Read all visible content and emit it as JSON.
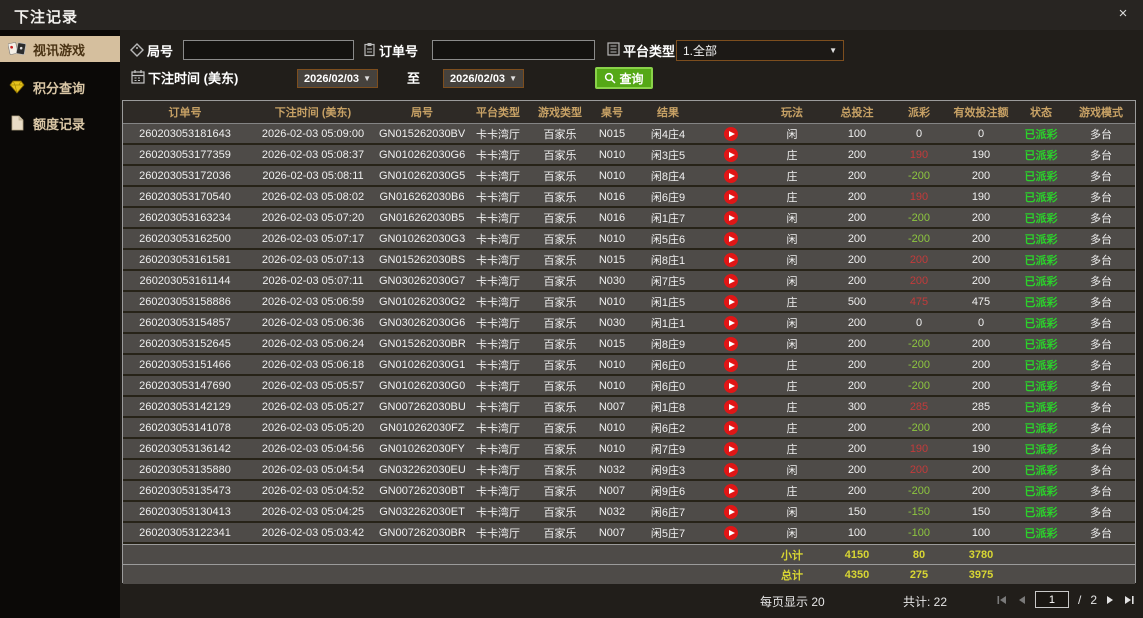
{
  "window": {
    "title": "下注记录",
    "close_label": "×"
  },
  "sidebar": {
    "items": [
      {
        "label": "视讯游戏"
      },
      {
        "label": "积分查询"
      },
      {
        "label": "额度记录"
      }
    ]
  },
  "filters": {
    "round_no_label": "局号",
    "round_no_value": "",
    "order_no_label": "订单号",
    "order_no_value": "",
    "platform_type_label": "平台类型",
    "platform_type_value": "1.全部",
    "bet_time_label": "下注时间 (美东)",
    "date_from": "2026/02/03",
    "to_label": "至",
    "date_to": "2026/02/03",
    "query_button_label": "查询"
  },
  "table": {
    "headers": [
      "订单号",
      "下注时间 (美东)",
      "局号",
      "平台类型",
      "游戏类型",
      "桌号",
      "结果",
      "",
      "玩法",
      "总投注",
      "派彩",
      "有效投注额",
      "状态",
      "游戏模式"
    ],
    "rows": [
      [
        "260203053181643",
        "2026-02-03 05:09:00",
        "GN015262030BV",
        "卡卡湾厅",
        "百家乐",
        "N015",
        "闲4庄4",
        "闲",
        "100",
        "0",
        "0",
        "已派彩",
        "多台"
      ],
      [
        "260203053177359",
        "2026-02-03 05:08:37",
        "GN010262030G6",
        "卡卡湾厅",
        "百家乐",
        "N010",
        "闲3庄5",
        "庄",
        "200",
        "190",
        "190",
        "已派彩",
        "多台"
      ],
      [
        "260203053172036",
        "2026-02-03 05:08:11",
        "GN010262030G5",
        "卡卡湾厅",
        "百家乐",
        "N010",
        "闲8庄4",
        "庄",
        "200",
        "-200",
        "200",
        "已派彩",
        "多台"
      ],
      [
        "260203053170540",
        "2026-02-03 05:08:02",
        "GN016262030B6",
        "卡卡湾厅",
        "百家乐",
        "N016",
        "闲6庄9",
        "庄",
        "200",
        "190",
        "190",
        "已派彩",
        "多台"
      ],
      [
        "260203053163234",
        "2026-02-03 05:07:20",
        "GN016262030B5",
        "卡卡湾厅",
        "百家乐",
        "N016",
        "闲1庄7",
        "闲",
        "200",
        "-200",
        "200",
        "已派彩",
        "多台"
      ],
      [
        "260203053162500",
        "2026-02-03 05:07:17",
        "GN010262030G3",
        "卡卡湾厅",
        "百家乐",
        "N010",
        "闲5庄6",
        "闲",
        "200",
        "-200",
        "200",
        "已派彩",
        "多台"
      ],
      [
        "260203053161581",
        "2026-02-03 05:07:13",
        "GN015262030BS",
        "卡卡湾厅",
        "百家乐",
        "N015",
        "闲8庄1",
        "闲",
        "200",
        "200",
        "200",
        "已派彩",
        "多台"
      ],
      [
        "260203053161144",
        "2026-02-03 05:07:11",
        "GN030262030G7",
        "卡卡湾厅",
        "百家乐",
        "N030",
        "闲7庄5",
        "闲",
        "200",
        "200",
        "200",
        "已派彩",
        "多台"
      ],
      [
        "260203053158886",
        "2026-02-03 05:06:59",
        "GN010262030G2",
        "卡卡湾厅",
        "百家乐",
        "N010",
        "闲1庄5",
        "庄",
        "500",
        "475",
        "475",
        "已派彩",
        "多台"
      ],
      [
        "260203053154857",
        "2026-02-03 05:06:36",
        "GN030262030G6",
        "卡卡湾厅",
        "百家乐",
        "N030",
        "闲1庄1",
        "闲",
        "200",
        "0",
        "0",
        "已派彩",
        "多台"
      ],
      [
        "260203053152645",
        "2026-02-03 05:06:24",
        "GN015262030BR",
        "卡卡湾厅",
        "百家乐",
        "N015",
        "闲8庄9",
        "闲",
        "200",
        "-200",
        "200",
        "已派彩",
        "多台"
      ],
      [
        "260203053151466",
        "2026-02-03 05:06:18",
        "GN010262030G1",
        "卡卡湾厅",
        "百家乐",
        "N010",
        "闲6庄0",
        "庄",
        "200",
        "-200",
        "200",
        "已派彩",
        "多台"
      ],
      [
        "260203053147690",
        "2026-02-03 05:05:57",
        "GN010262030G0",
        "卡卡湾厅",
        "百家乐",
        "N010",
        "闲6庄0",
        "庄",
        "200",
        "-200",
        "200",
        "已派彩",
        "多台"
      ],
      [
        "260203053142129",
        "2026-02-03 05:05:27",
        "GN007262030BU",
        "卡卡湾厅",
        "百家乐",
        "N007",
        "闲1庄8",
        "庄",
        "300",
        "285",
        "285",
        "已派彩",
        "多台"
      ],
      [
        "260203053141078",
        "2026-02-03 05:05:20",
        "GN010262030FZ",
        "卡卡湾厅",
        "百家乐",
        "N010",
        "闲6庄2",
        "庄",
        "200",
        "-200",
        "200",
        "已派彩",
        "多台"
      ],
      [
        "260203053136142",
        "2026-02-03 05:04:56",
        "GN010262030FY",
        "卡卡湾厅",
        "百家乐",
        "N010",
        "闲7庄9",
        "庄",
        "200",
        "190",
        "190",
        "已派彩",
        "多台"
      ],
      [
        "260203053135880",
        "2026-02-03 05:04:54",
        "GN032262030EU",
        "卡卡湾厅",
        "百家乐",
        "N032",
        "闲9庄3",
        "闲",
        "200",
        "200",
        "200",
        "已派彩",
        "多台"
      ],
      [
        "260203053135473",
        "2026-02-03 05:04:52",
        "GN007262030BT",
        "卡卡湾厅",
        "百家乐",
        "N007",
        "闲9庄6",
        "庄",
        "200",
        "-200",
        "200",
        "已派彩",
        "多台"
      ],
      [
        "260203053130413",
        "2026-02-03 05:04:25",
        "GN032262030ET",
        "卡卡湾厅",
        "百家乐",
        "N032",
        "闲6庄7",
        "闲",
        "150",
        "-150",
        "150",
        "已派彩",
        "多台"
      ],
      [
        "260203053122341",
        "2026-02-03 05:03:42",
        "GN007262030BR",
        "卡卡湾厅",
        "百家乐",
        "N007",
        "闲5庄7",
        "闲",
        "100",
        "-100",
        "100",
        "已派彩",
        "多台"
      ]
    ],
    "subtotal": {
      "label": "小计",
      "total_bet": "4150",
      "payout": "80",
      "valid_bet": "3780"
    },
    "grand_total": {
      "label": "总计",
      "total_bet": "4350",
      "payout": "275",
      "valid_bet": "3975"
    }
  },
  "pagination": {
    "per_page": "每页显示 20",
    "total_count": "共计: 22",
    "current_page": "1",
    "separator": "/",
    "total_pages": "2"
  },
  "colors": {
    "accent_gold": "#c7a165",
    "win_red": "#c23b3b",
    "loss_green": "#8dc63f",
    "status_green": "#2bd22b",
    "total_yellow": "#d8d633",
    "query_green": "#55a816",
    "active_tab_tan": "#d5bf9e"
  }
}
